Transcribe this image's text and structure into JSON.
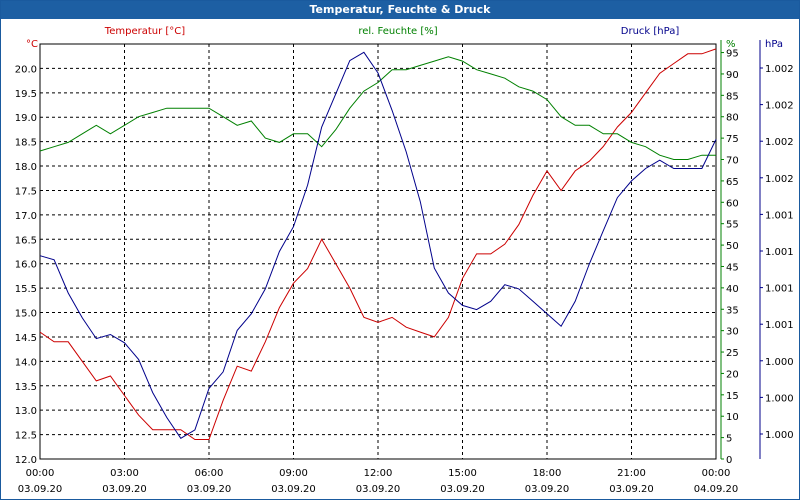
{
  "window": {
    "title": "Temperatur, Feuchte & Druck"
  },
  "colors": {
    "temperature": "#cc0000",
    "humidity": "#008000",
    "pressure": "#00008b",
    "title_bg": "#1d5fa3",
    "grid": "#000000"
  },
  "chart_data": {
    "type": "line",
    "title": "Temperatur, Feuchte & Druck",
    "grid": true,
    "x_ticks": [
      {
        "time": "00:00",
        "date": "03.09.20"
      },
      {
        "time": "03:00",
        "date": "03.09.20"
      },
      {
        "time": "06:00",
        "date": "03.09.20"
      },
      {
        "time": "09:00",
        "date": "03.09.20"
      },
      {
        "time": "12:00",
        "date": "03.09.20"
      },
      {
        "time": "15:00",
        "date": "03.09.20"
      },
      {
        "time": "18:00",
        "date": "03.09.20"
      },
      {
        "time": "21:00",
        "date": "03.09.20"
      },
      {
        "time": "00:00",
        "date": "04.09.20"
      }
    ],
    "axes": {
      "temperature": {
        "label": "Temperatur [°C]",
        "unit": "°C",
        "ylim": [
          12.0,
          20.5
        ],
        "ticks": [
          "12.0",
          "12.5",
          "13.0",
          "13.5",
          "14.0",
          "14.5",
          "15.0",
          "15.5",
          "16.0",
          "16.5",
          "17.0",
          "17.5",
          "18.0",
          "18.5",
          "19.0",
          "19.5",
          "20.0"
        ]
      },
      "humidity": {
        "label": "rel. Feuchte [%]",
        "unit": "%",
        "ylim": [
          0,
          97
        ],
        "ticks": [
          "0",
          "5",
          "10",
          "15",
          "20",
          "25",
          "30",
          "35",
          "40",
          "45",
          "50",
          "55",
          "60",
          "65",
          "70",
          "75",
          "80",
          "85",
          "90",
          "95"
        ]
      },
      "pressure": {
        "label": "Druck [hPa]",
        "unit": "hPa",
        "ylim": [
          0,
          1
        ],
        "ticks": [
          "1.000",
          "1.000",
          "1.000",
          "1.001",
          "1.001",
          "1.001",
          "1.001",
          "1.002",
          "1.002",
          "1.002",
          "1.002"
        ]
      }
    },
    "series": [
      {
        "name": "Temperatur [°C]",
        "axis": "temperature",
        "x": [
          0,
          0.5,
          1,
          1.5,
          2,
          2.5,
          3,
          3.5,
          4,
          4.5,
          5,
          5.5,
          6,
          6.5,
          7,
          7.5,
          8,
          8.5,
          9,
          9.5,
          10,
          10.5,
          11,
          11.5,
          12,
          12.5,
          13,
          13.5,
          14,
          14.5,
          15,
          15.5,
          16,
          16.5,
          17,
          17.5,
          18,
          18.5,
          19,
          19.5,
          20,
          20.5,
          21,
          21.5,
          22,
          22.5,
          23,
          23.5,
          24
        ],
        "values": [
          14.6,
          14.4,
          14.4,
          14.0,
          13.6,
          13.7,
          13.3,
          12.9,
          12.6,
          12.6,
          12.6,
          12.4,
          12.4,
          13.2,
          13.9,
          13.8,
          14.4,
          15.1,
          15.6,
          15.9,
          16.5,
          16.0,
          15.5,
          14.9,
          14.8,
          14.9,
          14.7,
          14.6,
          14.5,
          14.9,
          15.7,
          16.2,
          16.2,
          16.4,
          16.8,
          17.4,
          17.9,
          17.5,
          17.9,
          18.1,
          18.4,
          18.8,
          19.1,
          19.5,
          19.9,
          20.1,
          20.3,
          20.3,
          20.4
        ]
      },
      {
        "name": "rel. Feuchte [%]",
        "axis": "humidity",
        "x": [
          0,
          0.5,
          1,
          1.5,
          2,
          2.5,
          3,
          3.5,
          4,
          4.5,
          5,
          5.5,
          6,
          6.5,
          7,
          7.5,
          8,
          8.5,
          9,
          9.5,
          10,
          10.5,
          11,
          11.5,
          12,
          12.5,
          13,
          13.5,
          14,
          14.5,
          15,
          15.5,
          16,
          16.5,
          17,
          17.5,
          18,
          18.5,
          19,
          19.5,
          20,
          20.5,
          21,
          21.5,
          22,
          22.5,
          23,
          23.5,
          24
        ],
        "values": [
          72,
          73,
          74,
          76,
          78,
          76,
          78,
          80,
          81,
          82,
          82,
          82,
          82,
          80,
          78,
          79,
          75,
          74,
          76,
          76,
          73,
          77,
          82,
          86,
          88,
          91,
          91,
          92,
          93,
          94,
          93,
          91,
          90,
          89,
          87,
          86,
          84,
          80,
          78,
          78,
          76,
          76,
          74,
          73,
          71,
          70,
          70,
          71,
          71
        ]
      },
      {
        "name": "Druck [hPa]",
        "axis": "pressure",
        "x": [
          0,
          0.5,
          1,
          1.5,
          2,
          2.5,
          3,
          3.5,
          4,
          4.5,
          5,
          5.5,
          6,
          6.5,
          7,
          7.5,
          8,
          8.5,
          9,
          9.5,
          10,
          10.5,
          11,
          11.5,
          12,
          12.5,
          13,
          13.5,
          14,
          14.5,
          15,
          15.5,
          16,
          16.5,
          17,
          17.5,
          18,
          18.5,
          19,
          19.5,
          20,
          20.5,
          21,
          21.5,
          22,
          22.5,
          23,
          23.5,
          24
        ],
        "values": [
          0.49,
          0.48,
          0.4,
          0.34,
          0.29,
          0.3,
          0.28,
          0.24,
          0.16,
          0.1,
          0.05,
          0.07,
          0.17,
          0.21,
          0.31,
          0.35,
          0.41,
          0.5,
          0.56,
          0.66,
          0.8,
          0.88,
          0.96,
          0.98,
          0.93,
          0.84,
          0.74,
          0.62,
          0.46,
          0.4,
          0.37,
          0.36,
          0.38,
          0.42,
          0.41,
          0.38,
          0.35,
          0.32,
          0.38,
          0.47,
          0.55,
          0.63,
          0.67,
          0.7,
          0.72,
          0.7,
          0.7,
          0.7,
          0.77
        ]
      }
    ]
  }
}
